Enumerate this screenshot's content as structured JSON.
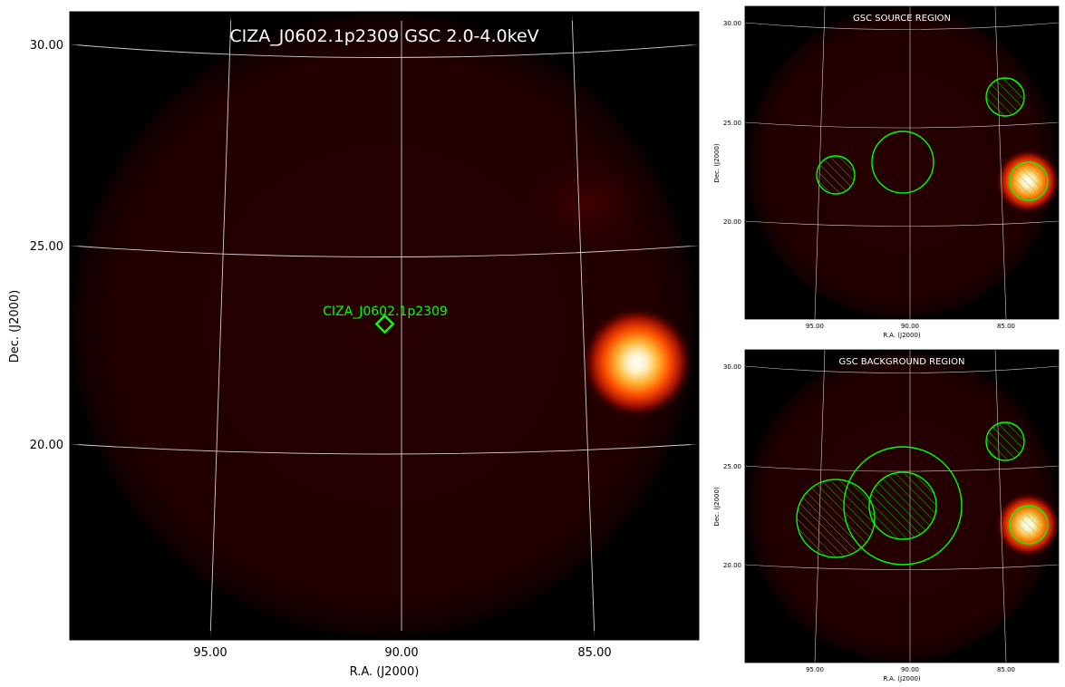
{
  "main_panel": {
    "title": "CIZA_J0602.1p2309 GSC 2.0-4.0keV",
    "xlabel": "R.A. (J2000)",
    "ylabel": "Dec. (J2000)",
    "ra_ticks": [
      "95.00",
      "90.00",
      "85.00"
    ],
    "dec_ticks": [
      "30.00",
      "25.00",
      "20.00"
    ],
    "source_label": "CIZA_J0602.1p2309",
    "marker_color": "#00ff00"
  },
  "source_panel": {
    "title": "GSC SOURCE REGION",
    "xlabel": "R.A. (J2000)",
    "ylabel": "Dec. (J2000)",
    "ra_ticks": [
      "95.00",
      "90.00",
      "85.00"
    ],
    "dec_ticks": [
      "30.00",
      "25.00",
      "20.00"
    ]
  },
  "background_panel": {
    "title": "GSC BACKGROUND REGION",
    "xlabel": "R.A. (J2000)",
    "ylabel": "Dec. (J2000)",
    "ra_ticks": [
      "95.00",
      "90.00",
      "85.00"
    ],
    "dec_ticks": [
      "30.00",
      "25.00",
      "20.00"
    ]
  },
  "colors": {
    "background": "#000000",
    "map_glow": "#2a0000",
    "region_green": "#00ff00",
    "grid": "#cccccc"
  }
}
